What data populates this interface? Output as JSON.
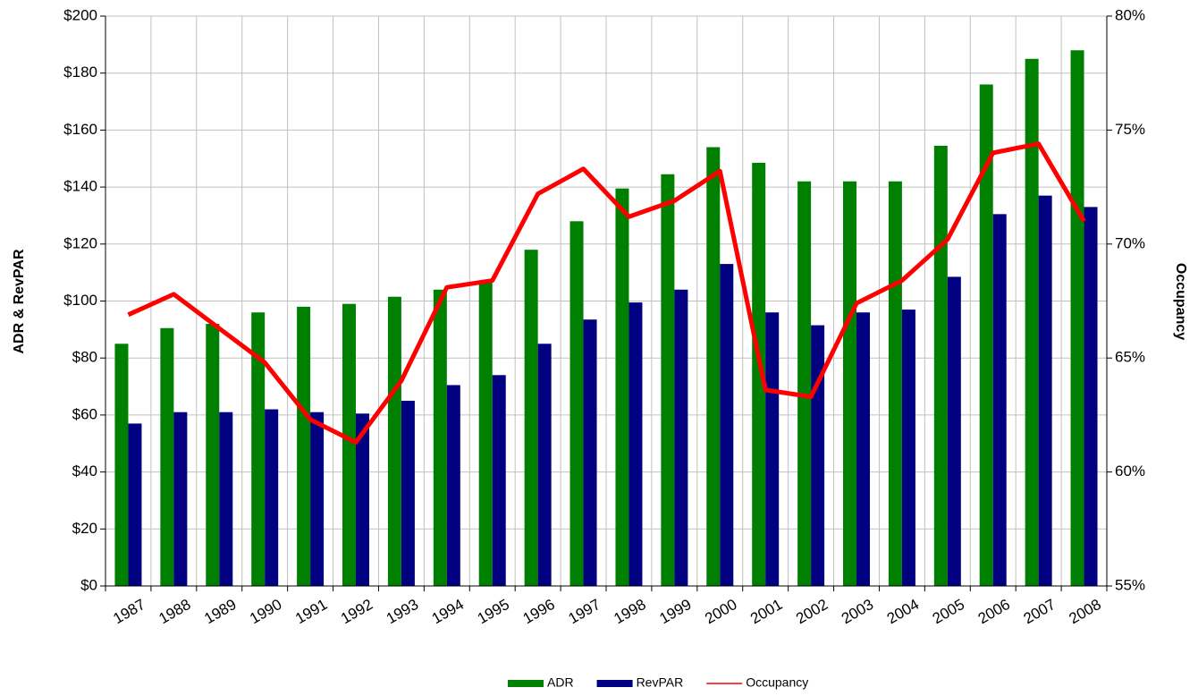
{
  "chart_data": {
    "type": "bar",
    "categories": [
      "1987",
      "1988",
      "1989",
      "1990",
      "1991",
      "1992",
      "1993",
      "1994",
      "1995",
      "1996",
      "1997",
      "1998",
      "1999",
      "2000",
      "2001",
      "2002",
      "2003",
      "2004",
      "2005",
      "2006",
      "2007",
      "2008"
    ],
    "y_label": "ADR & RevPAR",
    "y2_label": "Occupancy",
    "series": [
      {
        "name": "ADR",
        "type": "bar",
        "color": "#008000",
        "values": [
          85,
          90.5,
          92,
          96,
          98,
          99,
          101.5,
          104,
          107,
          118,
          128,
          139.5,
          144.5,
          154,
          148.5,
          142,
          142,
          142,
          154.5,
          176,
          185,
          188
        ]
      },
      {
        "name": "RevPAR",
        "type": "bar",
        "color": "#000080",
        "values": [
          57,
          61,
          61,
          62,
          61,
          60.5,
          65,
          70.5,
          74,
          85,
          93.5,
          99.5,
          104,
          113,
          96,
          91.5,
          96,
          97,
          108.5,
          130.5,
          137,
          133
        ]
      },
      {
        "name": "Occupancy",
        "type": "line",
        "axis": "y2",
        "color": "#ff0000",
        "values": [
          66.9,
          67.8,
          66.3,
          64.8,
          62.3,
          61.3,
          64.0,
          68.1,
          68.4,
          72.2,
          73.3,
          71.2,
          71.9,
          73.2,
          63.6,
          63.3,
          67.4,
          68.4,
          70.2,
          74.0,
          74.4,
          71.0
        ]
      }
    ],
    "ylim": [
      0,
      200
    ],
    "yticks": [
      {
        "value": 0,
        "label": "$0"
      },
      {
        "value": 20,
        "label": "$20"
      },
      {
        "value": 40,
        "label": "$40"
      },
      {
        "value": 60,
        "label": "$60"
      },
      {
        "value": 80,
        "label": "$80"
      },
      {
        "value": 100,
        "label": "$100"
      },
      {
        "value": 120,
        "label": "$120"
      },
      {
        "value": 140,
        "label": "$140"
      },
      {
        "value": 160,
        "label": "$160"
      },
      {
        "value": 180,
        "label": "$180"
      },
      {
        "value": 200,
        "label": "$200"
      }
    ],
    "y2lim": [
      55,
      80
    ],
    "y2ticks": [
      {
        "value": 55,
        "label": "55%"
      },
      {
        "value": 60,
        "label": "60%"
      },
      {
        "value": 65,
        "label": "65%"
      },
      {
        "value": 70,
        "label": "70%"
      },
      {
        "value": 75,
        "label": "75%"
      },
      {
        "value": 80,
        "label": "80%"
      }
    ],
    "grid": true,
    "legend": "bottom"
  }
}
